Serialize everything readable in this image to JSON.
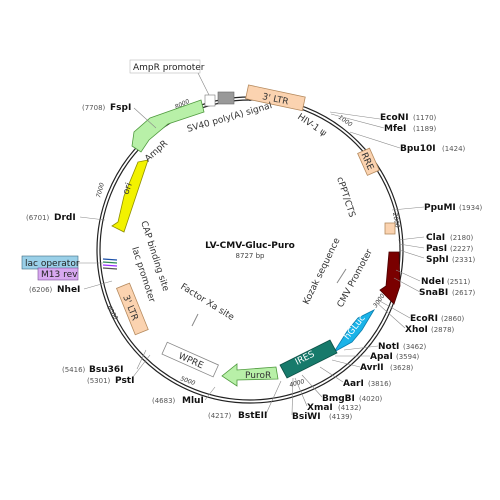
{
  "plasmid": {
    "name": "LV-CMV-Gluc-Puro",
    "size": "8727 bp"
  },
  "ticks": [
    "1000",
    "2000",
    "3000",
    "4000",
    "5000",
    "6000",
    "7000",
    "8000"
  ],
  "features": {
    "ltr3": "3' LTR",
    "hiv": "HIV-1 ψ",
    "rre": "RRE",
    "cppt": "cPPT/CTS",
    "cmv": "CMV Promoter",
    "kozak": "Kozak sequence",
    "gluc": "hGLuc",
    "ires": "IRES",
    "puror": "PuroR",
    "wpre": "WPRE",
    "factorxa": "Factor Xa site",
    "ltr3b": "3' LTR",
    "lacprom": "lac promoter",
    "cap": "CAP binding site",
    "ori": "ori",
    "ampr": "AmpR",
    "sv40": "SV40 poly(A) signal",
    "ampr_promoter": "AmpR promoter",
    "lac_operator": "lac operator",
    "m13rev": "M13 rev"
  },
  "sites": {
    "econi": {
      "name": "EcoNI",
      "pos": "(1170)"
    },
    "mfei": {
      "name": "MfeI",
      "pos": "(1189)"
    },
    "bpu10i": {
      "name": "Bpu10I",
      "pos": "(1424)"
    },
    "ppumi": {
      "name": "PpuMI",
      "pos": "(1934)"
    },
    "clai": {
      "name": "ClaI",
      "pos": "(2180)"
    },
    "pasi": {
      "name": "PasI",
      "pos": "(2227)"
    },
    "sphi": {
      "name": "SphI",
      "pos": "(2331)"
    },
    "ndei": {
      "name": "NdeI",
      "pos": "(2511)"
    },
    "snabi": {
      "name": "SnaBI",
      "pos": "(2617)"
    },
    "ecori": {
      "name": "EcoRI",
      "pos": "(2860)"
    },
    "xhoi": {
      "name": "XhoI",
      "pos": "(2878)"
    },
    "noti": {
      "name": "NotI",
      "pos": "(3462)"
    },
    "apai": {
      "name": "ApaI",
      "pos": "(3594)"
    },
    "avrii": {
      "name": "AvrII",
      "pos": "(3628)"
    },
    "aari": {
      "name": "AarI",
      "pos": "(3816)"
    },
    "bmgbi": {
      "name": "BmgBI",
      "pos": "(4020)"
    },
    "xmai": {
      "name": "XmaI",
      "pos": "(4132)"
    },
    "bsiwi": {
      "name": "BsiWI",
      "pos": "(4139)"
    },
    "bsteii": {
      "name": "BstEII",
      "pos": "(4217)"
    },
    "mlui": {
      "name": "MluI",
      "pos": "(4683)"
    },
    "psti": {
      "name": "PstI",
      "pos": "(5301)"
    },
    "bsu36i": {
      "name": "Bsu36I",
      "pos": "(5416)"
    },
    "nhei": {
      "name": "NheI",
      "pos": "(6206)"
    },
    "drdi": {
      "name": "DrdI",
      "pos": "(6701)"
    },
    "fspi": {
      "name": "FspI",
      "pos": "(7708)"
    }
  },
  "colors": {
    "ltr": "#fbd3b0",
    "cmv": "#7a0000",
    "gluc": "#1ab3e8",
    "ires": "#177a6b",
    "puror": "#b8f0a8",
    "ori": "#f2f200",
    "ampr": "#b8f0a8",
    "wpre": "#ffffff",
    "lac_operator": "#9ad0e8",
    "m13rev": "#d8a8f0"
  }
}
